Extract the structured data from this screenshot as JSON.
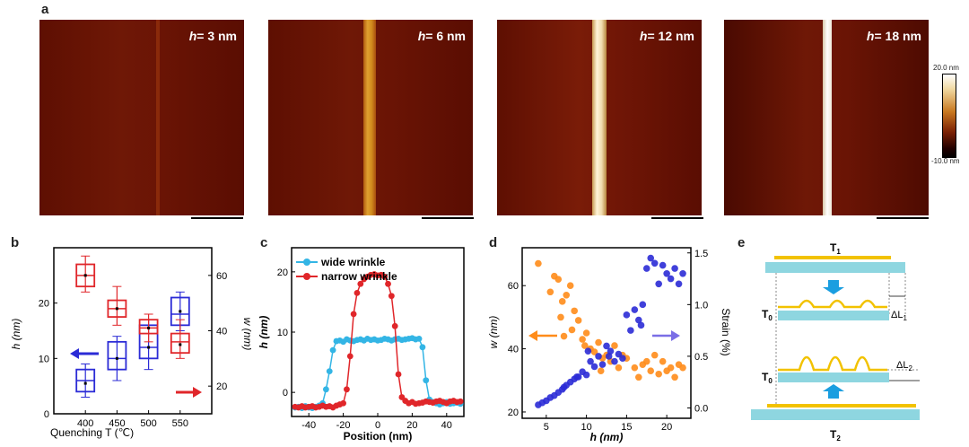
{
  "panels": {
    "a": {
      "label": "a",
      "images": [
        {
          "h_label": "h",
          "h_value": "= 3 nm"
        },
        {
          "h_label": "h",
          "h_value": "= 6 nm"
        },
        {
          "h_label": "h",
          "h_value": "= 12 nm"
        },
        {
          "h_label": "h",
          "h_value": "= 18 nm"
        }
      ],
      "colorbar": {
        "max_label": "20.0 nm",
        "min_label": "-10.0 nm"
      }
    },
    "b": {
      "label": "b"
    },
    "c": {
      "label": "c"
    },
    "d": {
      "label": "d"
    },
    "e": {
      "label": "e",
      "labels": {
        "t1": "T",
        "t1_sub": "1",
        "t0a": "T",
        "t0a_sub": "0",
        "dl1": "ΔL",
        "dl1_sub": "1",
        "t0b": "T",
        "t0b_sub": "0",
        "dl2": "ΔL",
        "dl2_sub": "2",
        "t2": "T",
        "t2_sub": "2"
      }
    }
  },
  "chart_data": [
    {
      "id": "b",
      "type": "box",
      "xlabel": "Quenching T (℃)",
      "ylabel_left": "h (nm)",
      "ylabel_right": "w (nm)",
      "categories": [
        "400",
        "450",
        "500",
        "550"
      ],
      "xlim": [
        350,
        600
      ],
      "ylim_left": [
        0,
        30
      ],
      "yticks_left": [
        "0",
        "10",
        "20"
      ],
      "ylim_right": [
        10,
        70
      ],
      "yticks_right": [
        "20",
        "40",
        "60"
      ],
      "series": [
        {
          "name": "h",
          "axis": "left",
          "color": "#2b2bd6",
          "boxes": [
            {
              "x": 400,
              "min": 3,
              "q1": 4,
              "med": 6,
              "q3": 8,
              "max": 9,
              "mean": 5.5
            },
            {
              "x": 450,
              "min": 6,
              "q1": 8,
              "med": 10,
              "q3": 13,
              "max": 14,
              "mean": 10
            },
            {
              "x": 500,
              "min": 8,
              "q1": 10,
              "med": 12,
              "q3": 16,
              "max": 17,
              "mean": 12
            },
            {
              "x": 550,
              "min": 15,
              "q1": 16,
              "med": 18,
              "q3": 21,
              "max": 22,
              "mean": 18.5
            }
          ]
        },
        {
          "name": "w",
          "axis": "right",
          "color": "#e0262a",
          "boxes": [
            {
              "x": 400,
              "min": 54,
              "q1": 56,
              "med": 60,
              "q3": 64,
              "max": 67,
              "mean": 60
            },
            {
              "x": 450,
              "min": 42,
              "q1": 45,
              "med": 48,
              "q3": 51,
              "max": 56,
              "mean": 48
            },
            {
              "x": 500,
              "min": 36,
              "q1": 39,
              "med": 41,
              "q3": 44,
              "max": 46,
              "mean": 41
            },
            {
              "x": 550,
              "min": 30,
              "q1": 32,
              "med": 36,
              "q3": 39,
              "max": 44,
              "mean": 35
            }
          ]
        }
      ]
    },
    {
      "id": "c",
      "type": "line",
      "xlabel": "Position (nm)",
      "ylabel": "h (nm)",
      "xlim": [
        -50,
        50
      ],
      "ylim": [
        -4,
        24
      ],
      "xticks": [
        -40,
        -20,
        0,
        20,
        40
      ],
      "yticks": [
        0,
        10,
        20
      ],
      "series": [
        {
          "name": "wide wrinkle",
          "color": "#33b5e5",
          "x": [
            -48,
            -46,
            -44,
            -42,
            -40,
            -38,
            -36,
            -34,
            -32,
            -30,
            -28,
            -26,
            -24,
            -22,
            -20,
            -18,
            -16,
            -14,
            -12,
            -10,
            -8,
            -6,
            -4,
            -2,
            0,
            2,
            4,
            6,
            8,
            10,
            12,
            14,
            16,
            18,
            20,
            22,
            24,
            26,
            28,
            30,
            32,
            34,
            36,
            38,
            40,
            42,
            44,
            46,
            48
          ],
          "y": [
            -2.5,
            -2.4,
            -2.6,
            -2.3,
            -2.5,
            -2.6,
            -2.4,
            -2.2,
            -1.8,
            0.5,
            3.5,
            7.0,
            8.5,
            8.6,
            8.4,
            8.8,
            8.6,
            8.5,
            8.7,
            8.8,
            8.6,
            8.9,
            8.7,
            8.8,
            8.6,
            8.7,
            8.9,
            8.8,
            8.6,
            8.8,
            8.9,
            8.7,
            8.8,
            8.9,
            9.0,
            8.8,
            8.9,
            7.5,
            2.0,
            -1.2,
            -1.6,
            -1.8,
            -2.0,
            -1.8,
            -1.6,
            -1.9,
            -1.8,
            -1.7,
            -1.9
          ]
        },
        {
          "name": "narrow wrinkle",
          "color": "#e0262a",
          "x": [
            -48,
            -46,
            -44,
            -42,
            -40,
            -38,
            -36,
            -34,
            -32,
            -30,
            -28,
            -26,
            -24,
            -22,
            -20,
            -18,
            -16,
            -14,
            -12,
            -10,
            -8,
            -6,
            -4,
            -2,
            0,
            2,
            4,
            6,
            8,
            10,
            12,
            14,
            16,
            18,
            20,
            22,
            24,
            26,
            28,
            30,
            32,
            34,
            36,
            38,
            40,
            42,
            44,
            46,
            48
          ],
          "y": [
            -2.4,
            -2.5,
            -2.3,
            -2.5,
            -2.4,
            -2.3,
            -2.5,
            -2.4,
            -2.2,
            -2.4,
            -2.3,
            -2.5,
            -2.2,
            -2.0,
            -1.8,
            0.5,
            6.0,
            13.0,
            16.5,
            18.0,
            18.8,
            19.2,
            19.5,
            19.6,
            19.4,
            19.5,
            19.2,
            18.0,
            16.0,
            11.0,
            3.0,
            -0.8,
            -1.4,
            -1.8,
            -1.6,
            -1.9,
            -1.8,
            -1.7,
            -1.5,
            -1.6,
            -1.7,
            -1.5,
            -1.4,
            -1.6,
            -1.8,
            -1.5,
            -1.4,
            -1.6,
            -1.5
          ]
        }
      ]
    },
    {
      "id": "d",
      "type": "scatter",
      "xlabel": "h (nm)",
      "ylabel_left": "w (nm)",
      "ylabel_right": "Strain (%)",
      "xlim": [
        2,
        23
      ],
      "xticks": [
        5,
        10,
        15,
        20
      ],
      "ylim_left": [
        18,
        72
      ],
      "yticks_left": [
        20,
        40,
        60
      ],
      "ylim_right": [
        -0.1,
        1.55
      ],
      "yticks_right": [
        "0.0",
        "0.5",
        "1.0",
        "1.5"
      ],
      "series": [
        {
          "name": "w",
          "axis": "left",
          "color": "#ff8c1a",
          "x": [
            4.0,
            5.5,
            6.0,
            6.5,
            7.0,
            7.5,
            6.8,
            8.0,
            8.5,
            9.0,
            9.5,
            8.2,
            7.2,
            9.8,
            10.5,
            11.0,
            11.5,
            12.0,
            12.5,
            13.0,
            13.5,
            14.0,
            15.0,
            16.0,
            16.5,
            17.0,
            17.5,
            18.0,
            19.0,
            20.0,
            21.0,
            21.5,
            22.0,
            10.0,
            11.8,
            14.5,
            18.5,
            19.5,
            20.5
          ],
          "y": [
            67,
            58,
            63,
            62,
            55,
            57,
            50,
            60,
            52,
            49,
            43,
            46,
            44,
            41,
            40,
            39,
            42,
            37,
            38,
            36,
            41,
            34,
            37,
            34,
            31,
            35,
            36,
            33,
            32,
            33,
            31,
            35,
            34,
            45,
            33,
            38,
            38,
            36,
            34
          ]
        },
        {
          "name": "strain",
          "axis": "right",
          "color": "#2b2bd6",
          "x": [
            4.0,
            4.5,
            5.0,
            5.5,
            6.0,
            6.5,
            7.0,
            7.5,
            8.0,
            8.5,
            9.0,
            9.5,
            10.0,
            10.5,
            11.0,
            11.5,
            12.0,
            12.5,
            13.0,
            13.5,
            14.0,
            14.5,
            15.0,
            15.5,
            16.0,
            16.5,
            17.0,
            17.5,
            18.0,
            18.5,
            19.0,
            19.5,
            20.0,
            20.5,
            21.0,
            21.5,
            22.0,
            7.2,
            8.8,
            10.2,
            12.8,
            16.8
          ],
          "y": [
            0.03,
            0.05,
            0.07,
            0.1,
            0.12,
            0.15,
            0.18,
            0.22,
            0.25,
            0.28,
            0.3,
            0.35,
            0.32,
            0.45,
            0.4,
            0.5,
            0.42,
            0.6,
            0.55,
            0.45,
            0.52,
            0.48,
            0.9,
            0.75,
            0.95,
            0.85,
            1.0,
            1.35,
            1.45,
            1.4,
            1.2,
            1.38,
            1.3,
            1.25,
            1.35,
            1.2,
            1.3,
            0.2,
            0.3,
            0.55,
            0.5,
            0.8
          ]
        }
      ]
    }
  ]
}
